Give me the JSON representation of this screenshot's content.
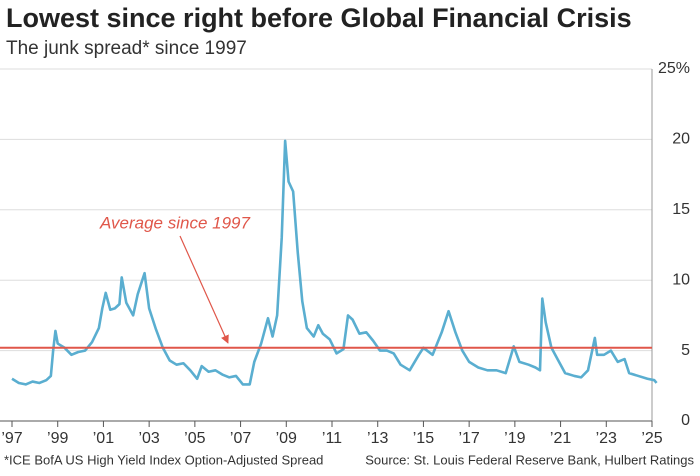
{
  "chart_data": {
    "type": "line",
    "title": "Lowest since right before Global Financial Crisis",
    "subtitle": "The junk spread* since 1997",
    "footnote": "*ICE BofA US High Yield Index Option-Adjusted Spread",
    "source": "Source: St. Louis Federal Reserve Bank, Hulbert Ratings",
    "annotation": "Average since 1997",
    "average": 5.2,
    "average_color": "#e0574a",
    "grid": true,
    "xlim": [
      1997,
      2025
    ],
    "ylim": [
      0,
      25
    ],
    "xticks": [
      {
        "value": 1997,
        "label": "’97"
      },
      {
        "value": 1999,
        "label": "’99"
      },
      {
        "value": 2001,
        "label": "’01"
      },
      {
        "value": 2003,
        "label": "’03"
      },
      {
        "value": 2005,
        "label": "’05"
      },
      {
        "value": 2007,
        "label": "’07"
      },
      {
        "value": 2009,
        "label": "’09"
      },
      {
        "value": 2011,
        "label": "’11"
      },
      {
        "value": 2013,
        "label": "’13"
      },
      {
        "value": 2015,
        "label": "’15"
      },
      {
        "value": 2017,
        "label": "’17"
      },
      {
        "value": 2019,
        "label": "’19"
      },
      {
        "value": 2021,
        "label": "’21"
      },
      {
        "value": 2023,
        "label": "’23"
      },
      {
        "value": 2025,
        "label": "’25"
      }
    ],
    "yticks": [
      0,
      5,
      10,
      15,
      20,
      {
        "value": 25,
        "label": "25%"
      }
    ],
    "x": [
      1997.0,
      1997.3,
      1997.6,
      1997.9,
      1998.2,
      1998.5,
      1998.7,
      1998.8,
      1998.9,
      1999.0,
      1999.3,
      1999.6,
      1999.9,
      2000.2,
      2000.5,
      2000.8,
      2000.95,
      2001.1,
      2001.3,
      2001.5,
      2001.7,
      2001.8,
      2002.0,
      2002.3,
      2002.5,
      2002.7,
      2002.8,
      2003.0,
      2003.3,
      2003.6,
      2003.9,
      2004.2,
      2004.5,
      2004.8,
      2005.1,
      2005.3,
      2005.6,
      2005.9,
      2006.2,
      2006.5,
      2006.8,
      2007.1,
      2007.4,
      2007.6,
      2007.9,
      2008.2,
      2008.4,
      2008.6,
      2008.8,
      2008.95,
      2009.1,
      2009.3,
      2009.5,
      2009.7,
      2009.9,
      2010.2,
      2010.4,
      2010.6,
      2010.9,
      2011.2,
      2011.5,
      2011.7,
      2011.9,
      2012.2,
      2012.5,
      2012.8,
      2013.1,
      2013.4,
      2013.7,
      2014.0,
      2014.4,
      2014.8,
      2015.0,
      2015.4,
      2015.8,
      2016.1,
      2016.4,
      2016.7,
      2017.0,
      2017.4,
      2017.8,
      2018.2,
      2018.6,
      2018.95,
      2019.2,
      2019.6,
      2019.9,
      2020.1,
      2020.2,
      2020.35,
      2020.6,
      2020.9,
      2021.2,
      2021.6,
      2021.9,
      2022.2,
      2022.5,
      2022.6,
      2022.9,
      2023.2,
      2023.5,
      2023.8,
      2024.0,
      2024.4,
      2024.8,
      2025.1,
      2025.2
    ],
    "series": [
      {
        "name": "Junk spread",
        "color": "#5aaed0",
        "values": [
          3.0,
          2.7,
          2.6,
          2.8,
          2.7,
          2.9,
          3.2,
          5.0,
          6.4,
          5.5,
          5.2,
          4.7,
          4.9,
          5.0,
          5.6,
          6.6,
          8.0,
          9.1,
          7.9,
          8.0,
          8.3,
          10.2,
          8.4,
          7.5,
          9.0,
          10.0,
          10.5,
          8.0,
          6.5,
          5.2,
          4.3,
          4.0,
          4.1,
          3.6,
          3.0,
          3.9,
          3.5,
          3.6,
          3.3,
          3.1,
          3.2,
          2.6,
          2.6,
          4.2,
          5.5,
          7.3,
          6.0,
          7.5,
          13.0,
          19.9,
          17.0,
          16.3,
          12.0,
          8.5,
          6.6,
          6.0,
          6.8,
          6.2,
          5.8,
          4.8,
          5.1,
          7.5,
          7.2,
          6.2,
          6.3,
          5.7,
          5.0,
          5.0,
          4.8,
          4.0,
          3.6,
          4.7,
          5.2,
          4.7,
          6.3,
          7.8,
          6.3,
          5.0,
          4.2,
          3.8,
          3.6,
          3.6,
          3.4,
          5.3,
          4.2,
          4.0,
          3.8,
          3.6,
          8.7,
          7.0,
          5.2,
          4.3,
          3.4,
          3.2,
          3.1,
          3.6,
          5.9,
          4.7,
          4.7,
          5.0,
          4.2,
          4.4,
          3.4,
          3.2,
          3.0,
          2.9,
          2.7
        ]
      }
    ]
  }
}
